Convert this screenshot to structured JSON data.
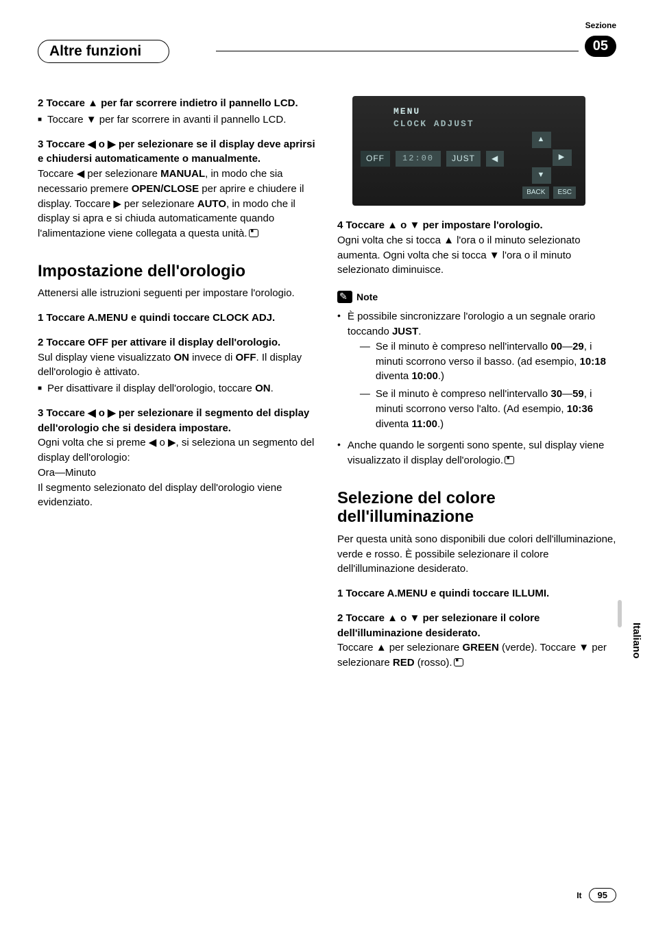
{
  "header": {
    "sezione": "Sezione",
    "title": "Altre funzioni",
    "badge": "05"
  },
  "left": {
    "s2_head": "2   Toccare ▲ per far scorrere indietro il pannello LCD.",
    "s2_sub": "Toccare ▼ per far scorrere in avanti il pannello LCD.",
    "s3_head": "3   Toccare ◀ o ▶ per selezionare se il display deve aprirsi e chiudersi automaticamente o manualmente.",
    "s3_body_a": "Toccare ◀ per selezionare ",
    "s3_body_b": ", in modo che sia necessario premere ",
    "s3_body_c": " per aprire e chiudere il display. Toccare ▶ per selezionare ",
    "s3_body_d": ", in modo che il display si apra e si chiuda automaticamente quando l'alimentazione viene collegata a questa unità.",
    "manual": "MANUAL",
    "openclose": "OPEN/CLOSE",
    "auto": "AUTO",
    "h_clock": "Impostazione dell'orologio",
    "clock_intro": "Attenersi alle istruzioni seguenti per impostare l'orologio.",
    "c1_head": "1   Toccare A.MENU e quindi toccare CLOCK ADJ.",
    "c2_head": "2   Toccare OFF per attivare il display dell'orologio.",
    "c2_body_a": "Sul display viene visualizzato ",
    "c2_body_b": " invece di ",
    "c2_body_c": ". Il display dell'orologio è attivato.",
    "on": "ON",
    "off": "OFF",
    "c2_sub": "Per disattivare il display dell'orologio, toccare ",
    "c3_head": "3   Toccare ◀ o ▶ per selezionare il segmento del display dell'orologio che si desidera impostare.",
    "c3_body1": "Ogni volta che si preme ◀ o ▶, si seleziona un segmento del display dell'orologio:",
    "c3_body2": "Ora—Minuto",
    "c3_body3": "Il segmento selezionato del display dell'orologio viene evidenziato."
  },
  "screenshot": {
    "menu": "MENU",
    "sub": "CLOCK ADJUST",
    "off": "OFF",
    "time": "12:00",
    "just": "JUST",
    "back": "BACK",
    "esc": "ESC"
  },
  "right": {
    "s4_head": "4   Toccare ▲ o ▼ per impostare l'orologio.",
    "s4_body": "Ogni volta che si tocca ▲ l'ora o il minuto selezionato aumenta. Ogni volta che si tocca ▼ l'ora o il minuto selezionato diminuisce.",
    "note_label": "Note",
    "n1_a": "È possibile sincronizzare l'orologio a un segnale orario toccando ",
    "n1_just": "JUST",
    "n1_b": ".",
    "n1_d1_a": "Se il minuto è compreso nell'intervallo ",
    "n1_d1_00": "00",
    "n1_d1_mid": "—",
    "n1_d1_29": "29",
    "n1_d1_b": ", i minuti scorrono verso il basso. (ad esempio, ",
    "n1_d1_t1": "10:18",
    "n1_d1_c": " diventa ",
    "n1_d1_t2": "10:00",
    "n1_d1_d": ".)",
    "n1_d2_a": "Se il minuto è compreso nell'intervallo ",
    "n1_d2_30": "30",
    "n1_d2_mid": "—",
    "n1_d2_59": "59",
    "n1_d2_b": ", i minuti scorrono verso l'alto. (Ad esempio, ",
    "n1_d2_t1": "10:36",
    "n1_d2_c": " diventa ",
    "n1_d2_t2": "11:00",
    "n1_d2_d": ".)",
    "n2": "Anche quando le sorgenti sono spente, sul display viene visualizzato il display dell'orologio.",
    "h_illum": "Selezione del colore dell'illuminazione",
    "illum_intro": "Per questa unità sono disponibili due colori dell'illuminazione, verde e rosso. È possibile selezionare il colore dell'illuminazione desiderato.",
    "i1_head": "1   Toccare A.MENU e quindi toccare ILLUMI.",
    "i2_head": "2   Toccare ▲ o ▼ per selezionare il colore dell'illuminazione desiderato.",
    "i2_body_a": "Toccare ▲ per selezionare ",
    "green": "GREEN",
    "i2_body_b": " (verde). Toccare ▼ per selezionare ",
    "red": "RED",
    "i2_body_c": " (rosso)."
  },
  "side": {
    "lang": "Italiano"
  },
  "footer": {
    "lang": "It",
    "page": "95"
  }
}
